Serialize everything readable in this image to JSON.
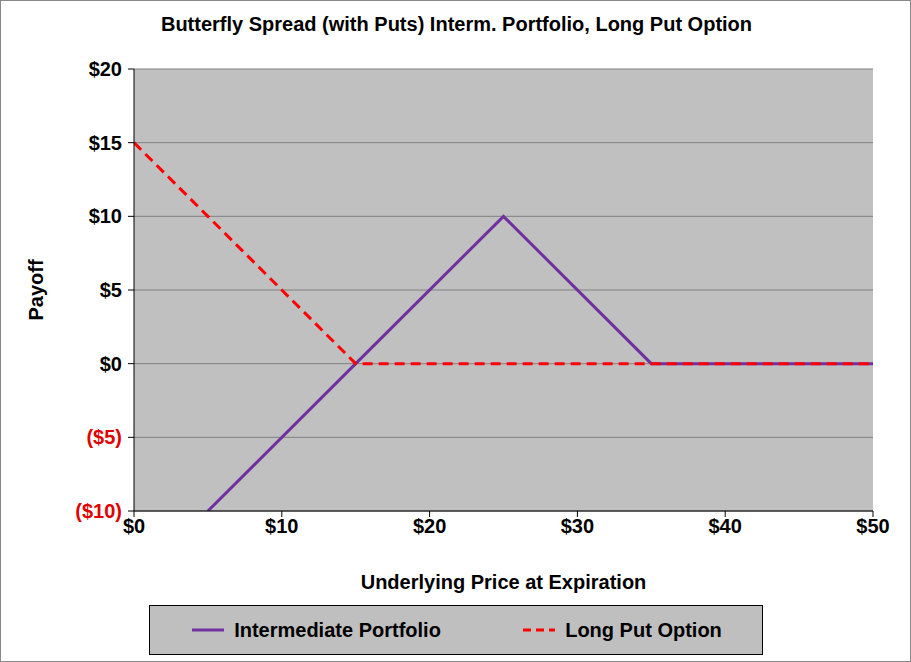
{
  "chart_data": {
    "type": "line",
    "title": "Butterfly Spread (with Puts) Interm. Portfolio, Long Put Option",
    "x_label": "Underlying Price at Expiration",
    "y_label": "Payoff",
    "x": [
      0,
      5,
      15,
      25,
      35,
      50
    ],
    "series": [
      {
        "name": "Intermediate Portfolio",
        "color": "#7030a0",
        "line_style": "solid",
        "values": [
          null,
          -10,
          0,
          10,
          0,
          0
        ]
      },
      {
        "name": "Long Put Option",
        "color": "#ff0000",
        "line_style": "dashed",
        "values": [
          15,
          10,
          0,
          0,
          0,
          0
        ]
      }
    ],
    "xlim": [
      0,
      50
    ],
    "xticks": [
      {
        "value": 0,
        "label": "$0"
      },
      {
        "value": 10,
        "label": "$10"
      },
      {
        "value": 20,
        "label": "$20"
      },
      {
        "value": 30,
        "label": "$30"
      },
      {
        "value": 40,
        "label": "$40"
      },
      {
        "value": 50,
        "label": "$50"
      }
    ],
    "ylim": [
      -10,
      20
    ],
    "yticks": [
      {
        "value": -10,
        "label": "($10)"
      },
      {
        "value": -5,
        "label": "($5)"
      },
      {
        "value": 0,
        "label": "$0"
      },
      {
        "value": 5,
        "label": "$5"
      },
      {
        "value": 10,
        "label": "$10"
      },
      {
        "value": 15,
        "label": "$15"
      },
      {
        "value": 20,
        "label": "$20"
      }
    ],
    "grid": true,
    "legend": "bottom"
  }
}
